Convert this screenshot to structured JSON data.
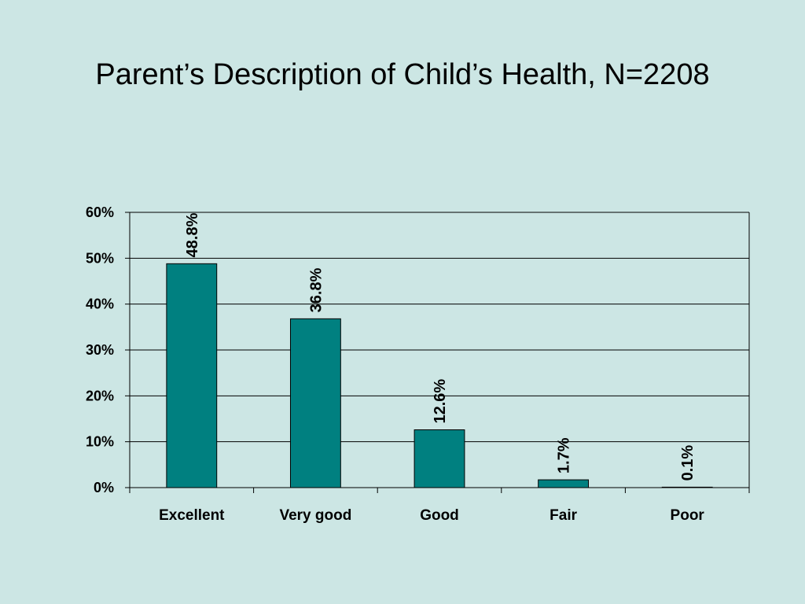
{
  "chart_data": {
    "type": "bar",
    "title": "Parent’s Description of Child’s Health, N=2208",
    "categories": [
      "Excellent",
      "Very good",
      "Good",
      "Fair",
      "Poor"
    ],
    "values": [
      48.8,
      36.8,
      12.6,
      1.7,
      0.1
    ],
    "data_labels": [
      "48.8%",
      "36.8%",
      "12.6%",
      "1.7%",
      "0.1%"
    ],
    "ylim": [
      0,
      60
    ],
    "yticks": [
      0,
      10,
      20,
      30,
      40,
      50,
      60
    ],
    "ytick_labels": [
      "0%",
      "10%",
      "20%",
      "30%",
      "40%",
      "50%",
      "60%"
    ],
    "grid": true,
    "legend": "none",
    "bar_color": "#008080"
  }
}
